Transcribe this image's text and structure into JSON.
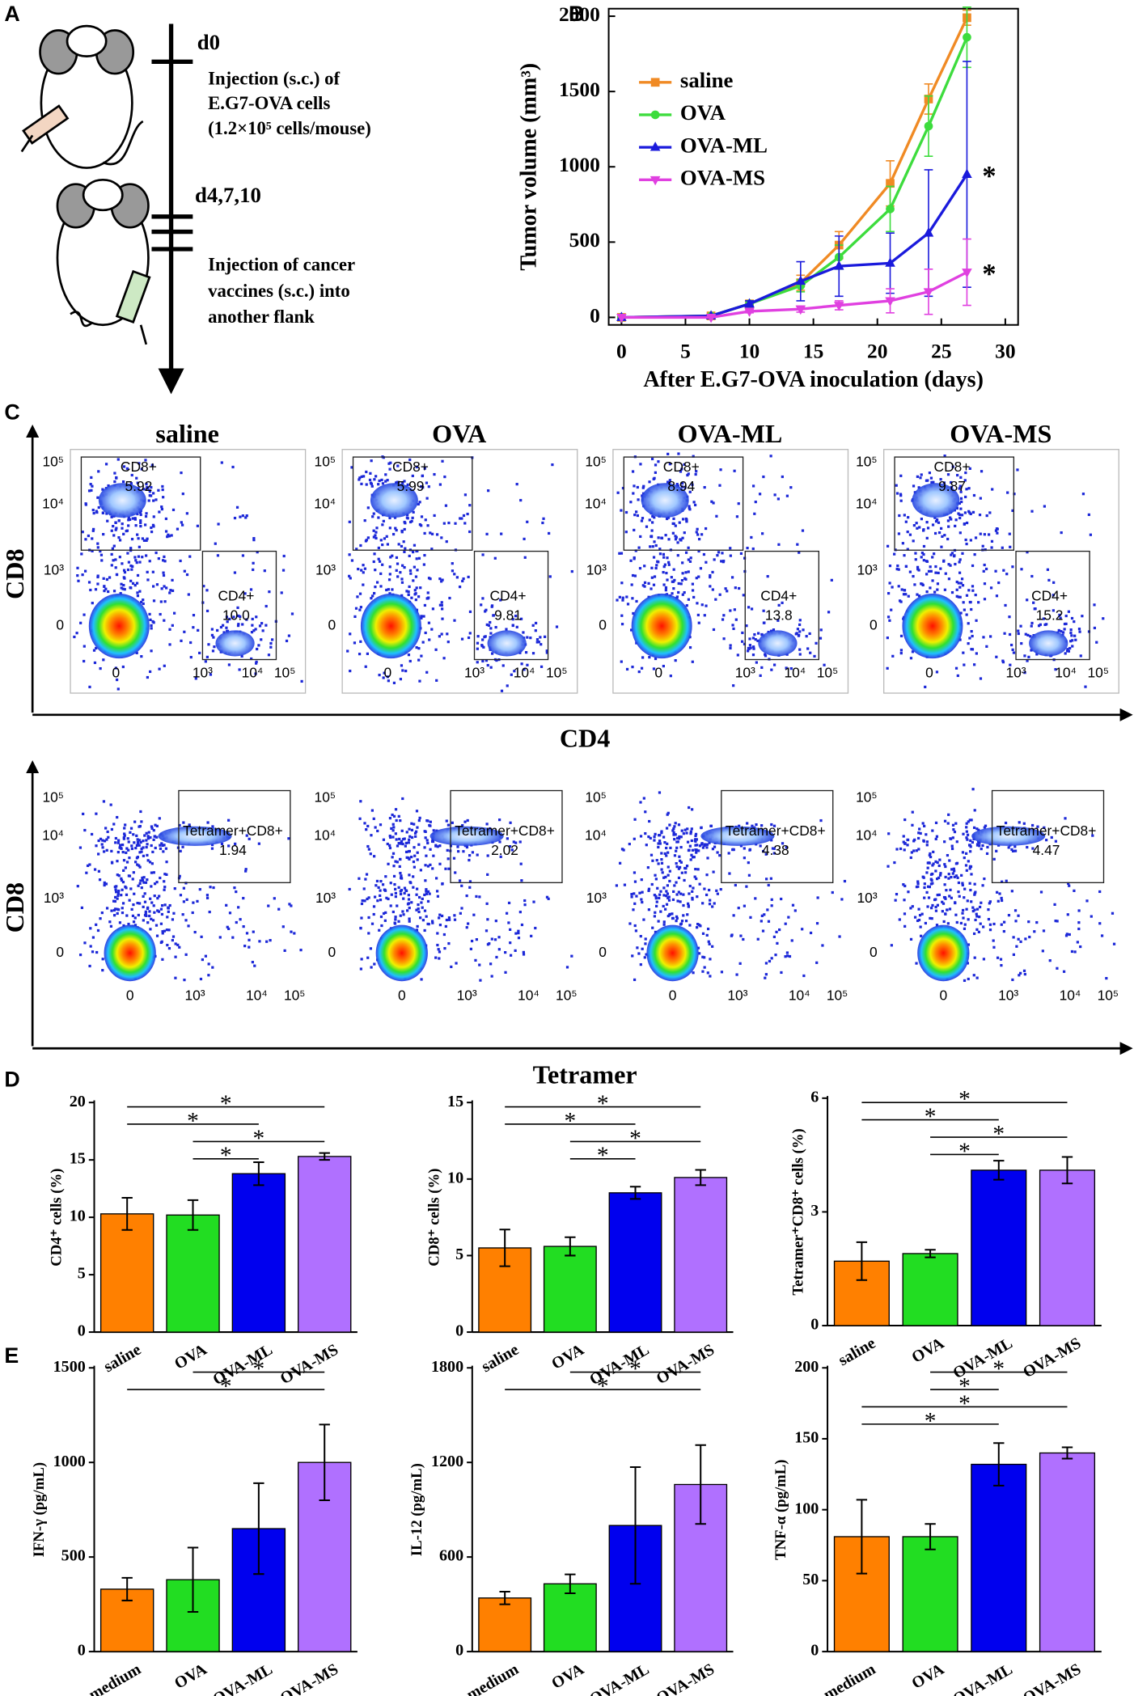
{
  "panel_labels": [
    "A",
    "B",
    "C",
    "D",
    "E"
  ],
  "schematic": {
    "day0": "d0",
    "day0_text": [
      "Injection (s.c.) of",
      "E.G7-OVA cells",
      "(1.2×10⁵ cells/mouse)"
    ],
    "day4": "d4,7,10",
    "day4_text": [
      "Injection of cancer",
      "vaccines (s.c.) into",
      "another flank"
    ]
  },
  "flow": {
    "titles": [
      "saline",
      "OVA",
      "OVA-ML",
      "OVA-MS"
    ],
    "ticks": [
      "0",
      "10³",
      "10⁴",
      "10⁵"
    ],
    "rows": [
      {
        "y_label": "CD8",
        "x_label": "CD4",
        "gates": [
          {
            "label": "CD8+",
            "values": [
              "5.92",
              "5.99",
              "8.94",
              "9.87"
            ]
          },
          {
            "label": "CD4+",
            "values": [
              "10.0",
              "9.81",
              "13.8",
              "15.2"
            ]
          }
        ]
      },
      {
        "y_label": "CD8",
        "x_label": "Tetramer",
        "gates": [
          {
            "label": "Tetramer+CD8+",
            "values": [
              "1.94",
              "2.02",
              "4.38",
              "4.47"
            ]
          }
        ]
      }
    ]
  },
  "chart_data": [
    {
      "type": "line",
      "ylabel": "Tumor volume (mm³)",
      "xlabel": "After E.G7-OVA inoculation (days)",
      "x": [
        0,
        7,
        10,
        14,
        17,
        21,
        24,
        27
      ],
      "xlim": [
        -1,
        31
      ],
      "xticks": [
        0,
        5,
        10,
        15,
        20,
        25,
        30
      ],
      "ylim": [
        -50,
        2050
      ],
      "yticks": [
        0,
        500,
        1000,
        1500,
        2000
      ],
      "legend": "upper left",
      "series": [
        {
          "name": "saline",
          "color": "#f08a24",
          "marker": "square",
          "values": [
            0,
            10,
            90,
            230,
            480,
            890,
            1450,
            1990
          ],
          "errors": [
            0,
            0,
            20,
            50,
            90,
            150,
            100,
            50
          ]
        },
        {
          "name": "OVA",
          "color": "#3ddc3d",
          "marker": "circle",
          "values": [
            0,
            10,
            90,
            210,
            400,
            720,
            1270,
            1860
          ],
          "errors": [
            0,
            0,
            20,
            40,
            80,
            150,
            200,
            200
          ]
        },
        {
          "name": "OVA-ML",
          "color": "#1a1adc",
          "marker": "triangle-up",
          "values": [
            0,
            10,
            90,
            240,
            340,
            360,
            560,
            950
          ],
          "errors": [
            0,
            0,
            20,
            130,
            200,
            200,
            420,
            750
          ]
        },
        {
          "name": "OVA-MS",
          "color": "#e040e0",
          "marker": "triangle-down",
          "values": [
            0,
            0,
            40,
            55,
            80,
            110,
            170,
            300
          ],
          "errors": [
            0,
            0,
            10,
            20,
            30,
            80,
            150,
            220
          ]
        }
      ],
      "annotations": [
        {
          "text": "*",
          "series": "OVA-ML"
        },
        {
          "text": "*",
          "series": "OVA-MS"
        }
      ]
    },
    {
      "type": "bar",
      "ylabel": "CD4⁺ cells (%)",
      "categories": [
        "saline",
        "OVA",
        "OVA-ML",
        "OVA-MS"
      ],
      "values": [
        10.3,
        10.2,
        13.8,
        15.3
      ],
      "errors": [
        1.4,
        1.3,
        1.0,
        0.3
      ],
      "colors": [
        "#ff8000",
        "#22dd22",
        "#0000ee",
        "#b070ff"
      ],
      "ylim": [
        0,
        20
      ],
      "yticks": [
        0,
        5,
        10,
        15,
        20
      ],
      "significance": [
        {
          "text": "*",
          "between": [
            "saline",
            "OVA-MS"
          ]
        },
        {
          "text": "*",
          "between": [
            "saline",
            "OVA-ML"
          ]
        },
        {
          "text": "*",
          "between": [
            "OVA",
            "OVA-MS"
          ]
        },
        {
          "text": "*",
          "between": [
            "OVA",
            "OVA-ML"
          ]
        }
      ]
    },
    {
      "type": "bar",
      "ylabel": "CD8⁺ cells (%)",
      "categories": [
        "saline",
        "OVA",
        "OVA-ML",
        "OVA-MS"
      ],
      "values": [
        5.5,
        5.6,
        9.1,
        10.1
      ],
      "errors": [
        1.2,
        0.6,
        0.4,
        0.5
      ],
      "colors": [
        "#ff8000",
        "#22dd22",
        "#0000ee",
        "#b070ff"
      ],
      "ylim": [
        0,
        15
      ],
      "yticks": [
        0,
        5,
        10,
        15
      ],
      "significance": [
        {
          "text": "*",
          "between": [
            "saline",
            "OVA-MS"
          ]
        },
        {
          "text": "*",
          "between": [
            "saline",
            "OVA-ML"
          ]
        },
        {
          "text": "*",
          "between": [
            "OVA",
            "OVA-MS"
          ]
        },
        {
          "text": "*",
          "between": [
            "OVA",
            "OVA-ML"
          ]
        }
      ]
    },
    {
      "type": "bar",
      "ylabel": "Tetramer⁺CD8⁺ cells (%)",
      "categories": [
        "saline",
        "OVA",
        "OVA-ML",
        "OVA-MS"
      ],
      "values": [
        1.7,
        1.9,
        4.1,
        4.1
      ],
      "errors": [
        0.5,
        0.1,
        0.25,
        0.35
      ],
      "colors": [
        "#ff8000",
        "#22dd22",
        "#0000ee",
        "#b070ff"
      ],
      "ylim": [
        0,
        6
      ],
      "yticks": [
        0,
        3,
        6
      ],
      "significance": [
        {
          "text": "*",
          "between": [
            "saline",
            "OVA-MS"
          ]
        },
        {
          "text": "*",
          "between": [
            "saline",
            "OVA-ML"
          ]
        },
        {
          "text": "*",
          "between": [
            "OVA",
            "OVA-MS"
          ]
        },
        {
          "text": "*",
          "between": [
            "OVA",
            "OVA-ML"
          ]
        }
      ]
    },
    {
      "type": "bar",
      "ylabel": "IFN-γ (pg/mL)",
      "categories": [
        "medium",
        "OVA",
        "OVA-ML",
        "OVA-MS"
      ],
      "values": [
        330,
        380,
        650,
        1000
      ],
      "errors": [
        60,
        170,
        240,
        200
      ],
      "colors": [
        "#ff8000",
        "#22dd22",
        "#0000ee",
        "#b070ff"
      ],
      "ylim": [
        0,
        1500
      ],
      "yticks": [
        0,
        500,
        1000,
        1500
      ],
      "significance": [
        {
          "text": "*",
          "between": [
            "OVA",
            "OVA-MS"
          ]
        },
        {
          "text": "*",
          "between": [
            "medium",
            "OVA-MS"
          ]
        }
      ]
    },
    {
      "type": "bar",
      "ylabel": "IL-12 (pg/mL)",
      "categories": [
        "medium",
        "OVA",
        "OVA-ML",
        "OVA-MS"
      ],
      "values": [
        340,
        430,
        800,
        1060
      ],
      "errors": [
        40,
        60,
        370,
        250
      ],
      "colors": [
        "#ff8000",
        "#22dd22",
        "#0000ee",
        "#b070ff"
      ],
      "ylim": [
        0,
        1800
      ],
      "yticks": [
        0,
        600,
        1200,
        1800
      ],
      "significance": [
        {
          "text": "*",
          "between": [
            "OVA",
            "OVA-MS"
          ]
        },
        {
          "text": "*",
          "between": [
            "medium",
            "OVA-MS"
          ]
        }
      ]
    },
    {
      "type": "bar",
      "ylabel": "TNF-α (pg/mL)",
      "categories": [
        "medium",
        "OVA",
        "OVA-ML",
        "OVA-MS"
      ],
      "values": [
        81,
        81,
        132,
        140
      ],
      "errors": [
        26,
        9,
        15,
        4
      ],
      "colors": [
        "#ff8000",
        "#22dd22",
        "#0000ee",
        "#b070ff"
      ],
      "ylim": [
        0,
        200
      ],
      "yticks": [
        0,
        50,
        100,
        150,
        200
      ],
      "significance": [
        {
          "text": "*",
          "between": [
            "OVA",
            "OVA-MS"
          ]
        },
        {
          "text": "*",
          "between": [
            "OVA",
            "OVA-ML"
          ]
        },
        {
          "text": "*",
          "between": [
            "medium",
            "OVA-MS"
          ]
        },
        {
          "text": "*",
          "between": [
            "medium",
            "OVA-ML"
          ]
        }
      ]
    }
  ]
}
